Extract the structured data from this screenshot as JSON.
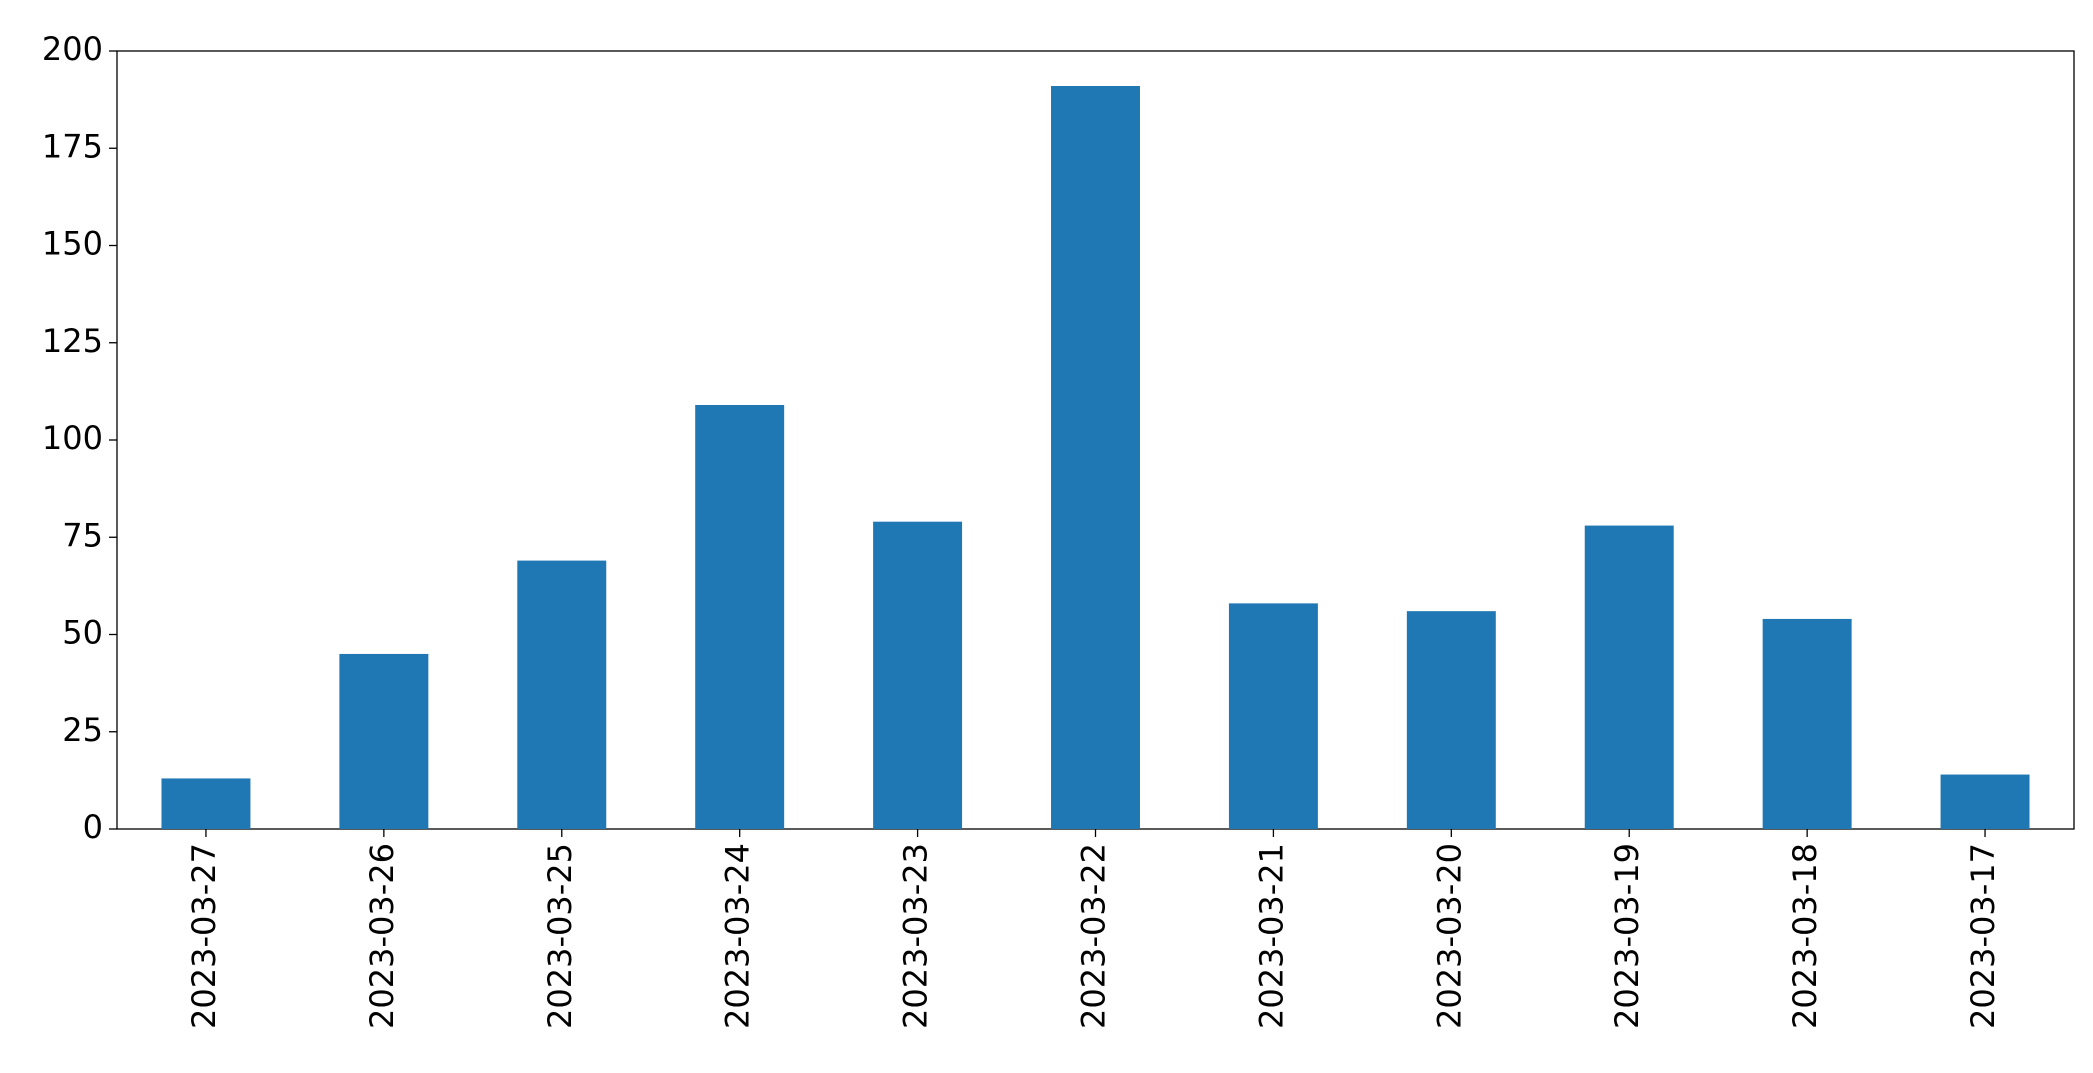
{
  "chart_data": {
    "type": "bar",
    "categories": [
      "2023-03-27",
      "2023-03-26",
      "2023-03-25",
      "2023-03-24",
      "2023-03-23",
      "2023-03-22",
      "2023-03-21",
      "2023-03-20",
      "2023-03-19",
      "2023-03-18",
      "2023-03-17"
    ],
    "values": [
      13,
      45,
      69,
      109,
      79,
      191,
      58,
      56,
      78,
      54,
      14
    ],
    "color": "#1f77b4",
    "ylim": [
      0,
      200
    ],
    "yticks": [
      0,
      25,
      50,
      75,
      100,
      125,
      150,
      175,
      200
    ],
    "grid": false
  }
}
